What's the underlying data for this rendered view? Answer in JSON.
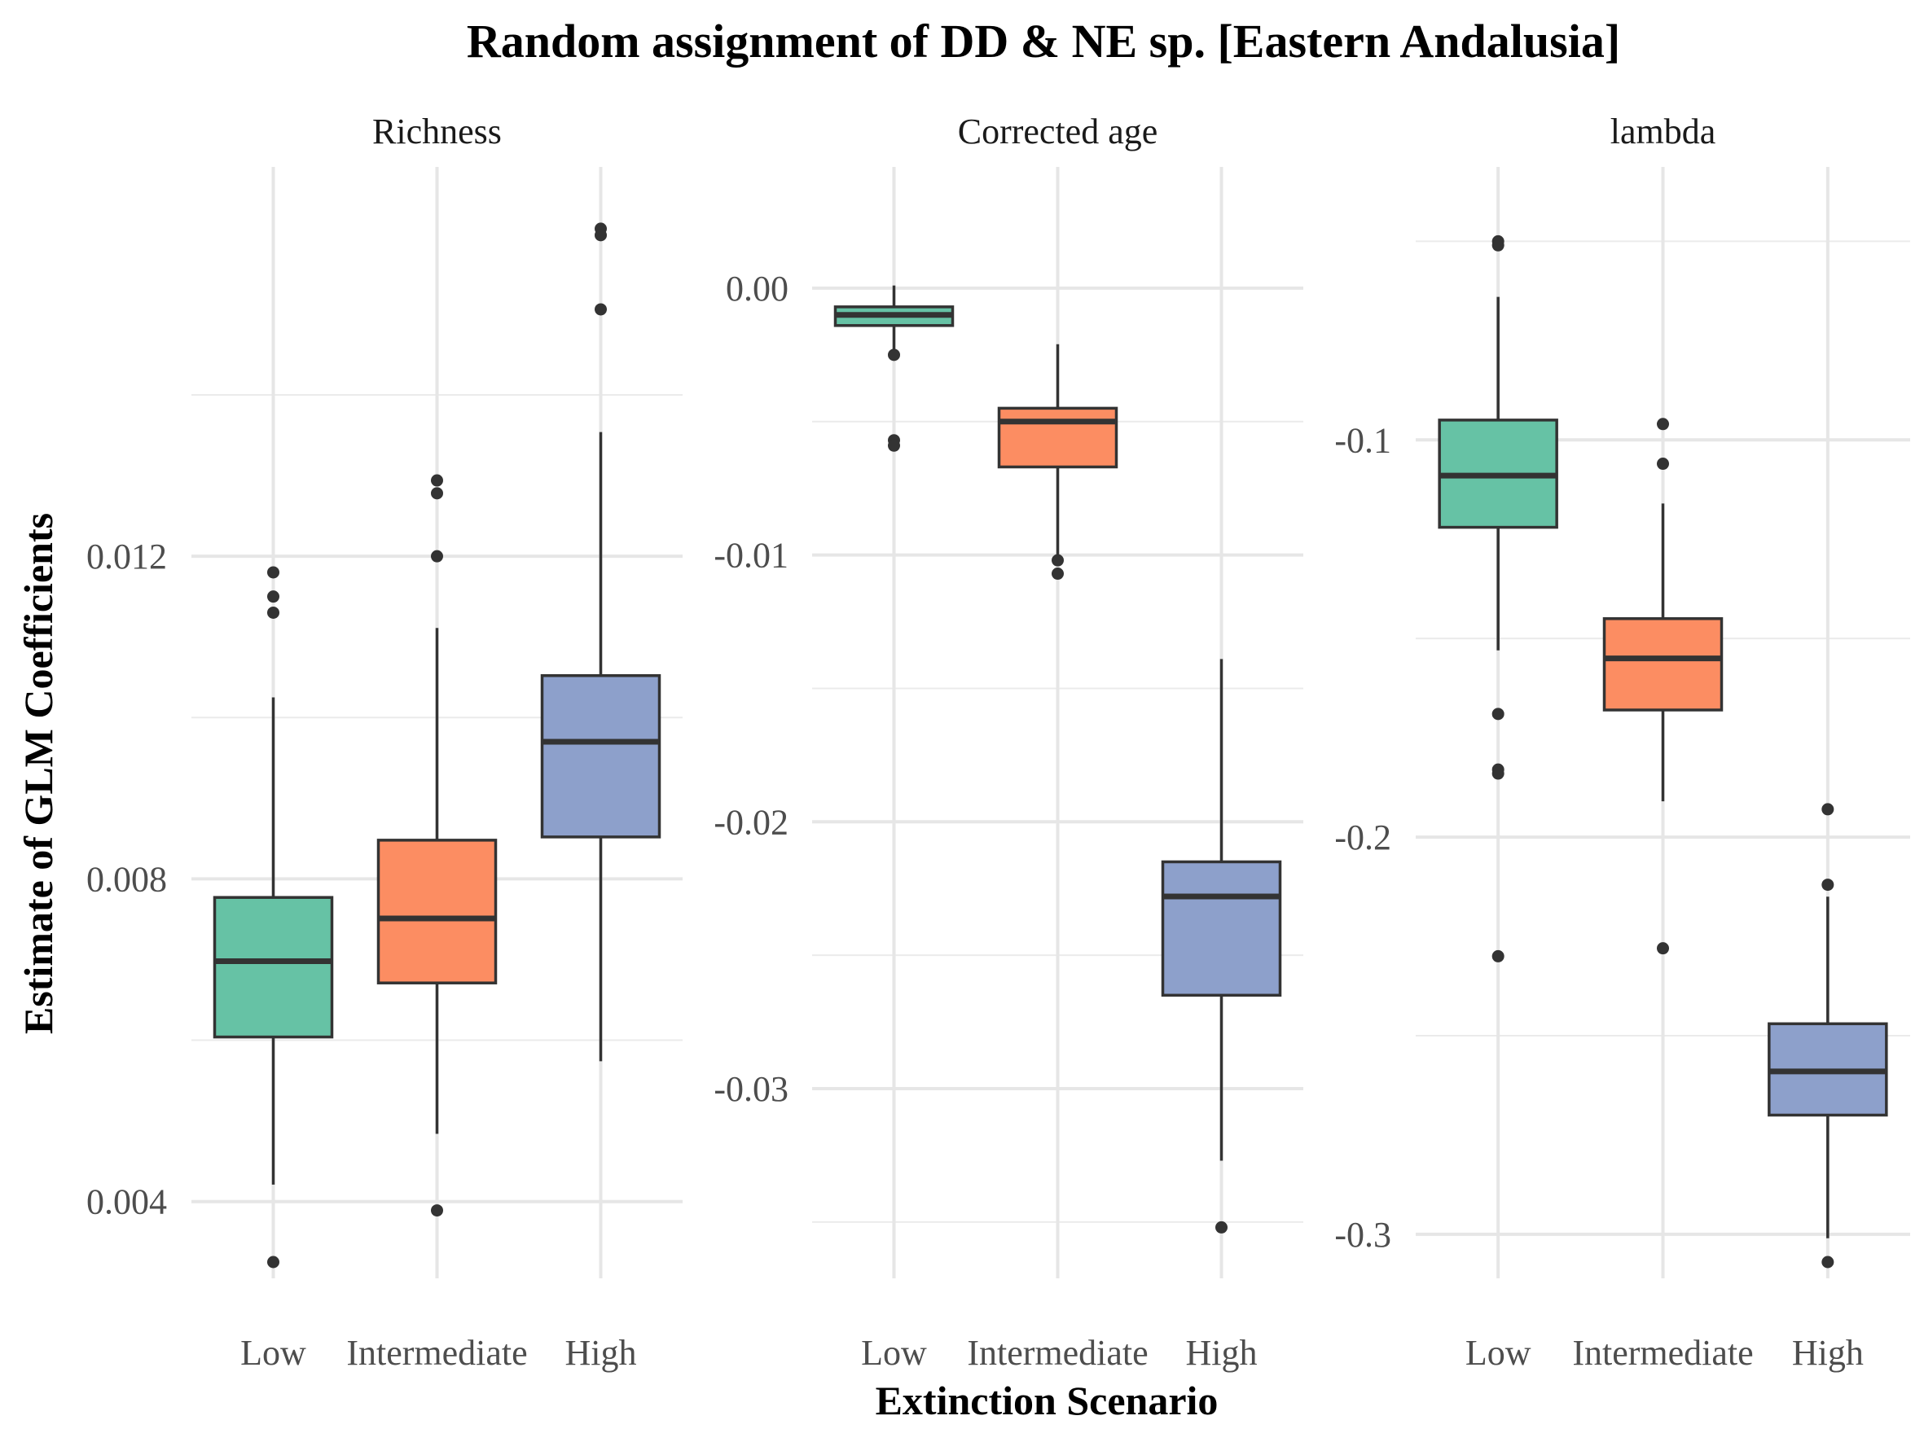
{
  "chart_data": {
    "type": "box",
    "title": "Random assignment of DD & NE sp. [Eastern Andalusia]",
    "xlabel": "Extinction Scenario",
    "ylabel": "Estimate of GLM Coefficients",
    "categories": [
      "Low",
      "Intermediate",
      "High"
    ],
    "colors": {
      "Low": "#66c2a5",
      "Intermediate": "#fc8d62",
      "High": "#8da0cb"
    },
    "grid": true,
    "legend": "none",
    "facets": [
      {
        "label": "Richness",
        "ylim": [
          0.00325,
          0.01615
        ],
        "yticks": [
          0.004,
          0.008,
          0.012
        ],
        "ytick_labels": [
          "0.004",
          "0.008",
          "0.012"
        ],
        "boxes": [
          {
            "category": "Low",
            "whisker_low": 0.00421,
            "q1": 0.00604,
            "median": 0.00698,
            "q3": 0.00777,
            "whisker_high": 0.01025,
            "outliers": [
              0.0118,
              0.0115,
              0.0113,
              0.00325
            ]
          },
          {
            "category": "Intermediate",
            "whisker_low": 0.00484,
            "q1": 0.00671,
            "median": 0.00751,
            "q3": 0.00848,
            "whisker_high": 0.01111,
            "outliers": [
              0.01294,
              0.01278,
              0.012,
              0.00389
            ]
          },
          {
            "category": "High",
            "whisker_low": 0.00574,
            "q1": 0.00852,
            "median": 0.0097,
            "q3": 0.01052,
            "whisker_high": 0.01354,
            "outliers": [
              0.01606,
              0.01598,
              0.01506
            ]
          }
        ]
      },
      {
        "label": "Corrected age",
        "ylim": [
          -0.0365,
          0.0025
        ],
        "yticks": [
          0.0,
          -0.01,
          -0.02,
          -0.03
        ],
        "ytick_labels": [
          "0.00",
          "-0.01",
          "-0.02",
          "-0.03"
        ],
        "boxes": [
          {
            "category": "Low",
            "whisker_low": -0.0025,
            "q1": -0.0014,
            "median": -0.001,
            "q3": -0.0007,
            "whisker_high": 0.0001,
            "outliers": [
              -0.0025,
              -0.0057,
              -0.0059
            ]
          },
          {
            "category": "Intermediate",
            "whisker_low": -0.0102,
            "q1": -0.0067,
            "median": -0.005,
            "q3": -0.0045,
            "whisker_high": -0.0021,
            "outliers": [
              -0.0102,
              -0.0107
            ]
          },
          {
            "category": "High",
            "whisker_low": -0.0327,
            "q1": -0.0265,
            "median": -0.0228,
            "q3": -0.0215,
            "whisker_high": -0.0139,
            "outliers": [
              -0.0352
            ]
          }
        ]
      },
      {
        "label": "lambda",
        "ylim": [
          -0.307,
          -0.045
        ],
        "yticks": [
          -0.1,
          -0.2,
          -0.3
        ],
        "ytick_labels": [
          "-0.1",
          "-0.2",
          "-0.3"
        ],
        "boxes": [
          {
            "category": "Low",
            "whisker_low": -0.153,
            "q1": -0.122,
            "median": -0.109,
            "q3": -0.095,
            "whisker_high": -0.064,
            "outliers": [
              -0.05,
              -0.051,
              -0.169,
              -0.183,
              -0.184,
              -0.23
            ]
          },
          {
            "category": "Intermediate",
            "whisker_low": -0.191,
            "q1": -0.168,
            "median": -0.155,
            "q3": -0.145,
            "whisker_high": -0.116,
            "outliers": [
              -0.096,
              -0.106,
              -0.228
            ]
          },
          {
            "category": "High",
            "whisker_low": -0.301,
            "q1": -0.27,
            "median": -0.259,
            "q3": -0.247,
            "whisker_high": -0.215,
            "outliers": [
              -0.193,
              -0.212,
              -0.307
            ]
          }
        ]
      }
    ]
  }
}
